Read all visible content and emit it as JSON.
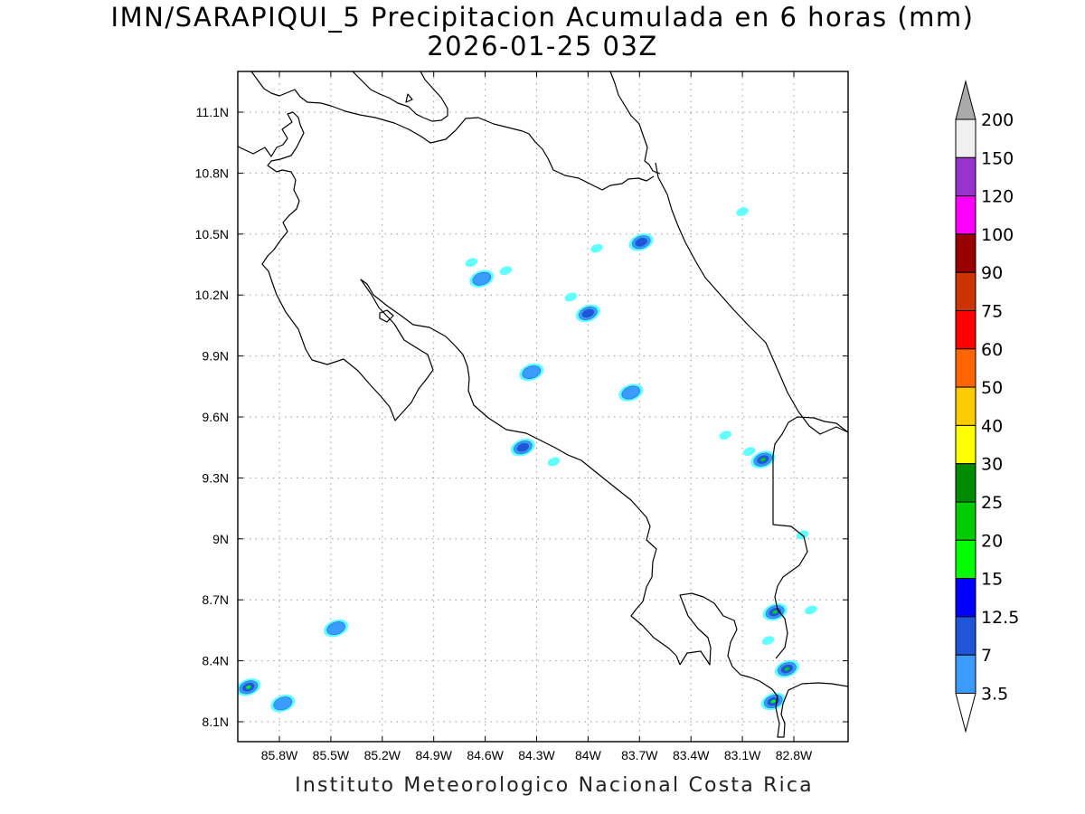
{
  "title": "IMN/SARAPIQUI_5 Precipitacion Acumulada en 6 horas (mm)",
  "subtitle": "2026-01-25 03Z",
  "footer": "Instituto Meteorologico Nacional Costa Rica",
  "map": {
    "lon_range": [
      -86.0,
      -83.0
    ],
    "lat_range": [
      8.0,
      11.3
    ],
    "lon_ticks": [
      "85.8W",
      "85.5W",
      "85.2W",
      "84.9W",
      "84.6W",
      "84.3W",
      "84W",
      "83.7W",
      "83.4W",
      "83.1W",
      "82.8W"
    ],
    "lat_ticks": [
      "8.1N",
      "8.4N",
      "8.7N",
      "9N",
      "9.3N",
      "9.6N",
      "9.9N",
      "10.2N",
      "10.5N",
      "10.8N",
      "11.1N"
    ],
    "grid": true,
    "coastline_color": "#000000"
  },
  "colorbar": {
    "levels": [
      "3.5",
      "7",
      "12.5",
      "15",
      "20",
      "25",
      "30",
      "40",
      "50",
      "60",
      "75",
      "90",
      "100",
      "120",
      "150",
      "200"
    ],
    "colors": [
      "#62ffff",
      "#3b9cff",
      "#1f55d8",
      "#0000ff",
      "#00ff00",
      "#00cc00",
      "#008c00",
      "#ffff00",
      "#ffcc00",
      "#ff6600",
      "#ff0000",
      "#cc3300",
      "#990000",
      "#ff00ff",
      "#9933cc",
      "#f0f0f0",
      "#aaaaaa"
    ]
  },
  "chart_data": {
    "type": "heatmap",
    "title": "IMN/SARAPIQUI_5 Precipitacion Acumulada en 6 horas (mm)",
    "subtitle": "2026-01-25 03Z",
    "units": "mm",
    "xlabel": "",
    "ylabel": "",
    "x_ticks": [
      "85.8W",
      "85.5W",
      "85.2W",
      "84.9W",
      "84.6W",
      "84.3W",
      "84W",
      "83.7W",
      "83.4W",
      "83.1W",
      "82.8W"
    ],
    "y_ticks": [
      "8.1N",
      "8.4N",
      "8.7N",
      "9N",
      "9.3N",
      "9.6N",
      "9.9N",
      "10.2N",
      "10.5N",
      "10.8N",
      "11.1N"
    ],
    "legend_placement": "right",
    "rain_cells": [
      {
        "lon": -83.69,
        "lat": 10.46,
        "max_level": "12.5"
      },
      {
        "lon": -84.62,
        "lat": 10.28,
        "max_level": "7"
      },
      {
        "lon": -84.0,
        "lat": 10.11,
        "max_level": "12.5"
      },
      {
        "lon": -84.33,
        "lat": 9.82,
        "max_level": "7"
      },
      {
        "lon": -83.75,
        "lat": 9.72,
        "max_level": "7"
      },
      {
        "lon": -84.38,
        "lat": 9.45,
        "max_level": "12.5"
      },
      {
        "lon": -82.98,
        "lat": 9.39,
        "max_level": "25"
      },
      {
        "lon": -82.91,
        "lat": 8.64,
        "max_level": "25"
      },
      {
        "lon": -82.84,
        "lat": 8.36,
        "max_level": "25"
      },
      {
        "lon": -82.92,
        "lat": 8.2,
        "max_level": "20"
      },
      {
        "lon": -85.98,
        "lat": 8.27,
        "max_level": "20"
      },
      {
        "lon": -85.78,
        "lat": 8.19,
        "max_level": "7"
      },
      {
        "lon": -85.47,
        "lat": 8.56,
        "max_level": "7"
      },
      {
        "lon": -84.48,
        "lat": 10.32,
        "max_level": "3.5"
      },
      {
        "lon": -84.1,
        "lat": 10.19,
        "max_level": "3.5"
      },
      {
        "lon": -83.95,
        "lat": 10.43,
        "max_level": "3.5"
      },
      {
        "lon": -84.68,
        "lat": 10.36,
        "max_level": "3.5"
      },
      {
        "lon": -82.75,
        "lat": 9.02,
        "max_level": "3.5"
      },
      {
        "lon": -82.7,
        "lat": 8.65,
        "max_level": "3.5"
      },
      {
        "lon": -82.95,
        "lat": 8.5,
        "max_level": "3.5"
      },
      {
        "lon": -84.2,
        "lat": 9.38,
        "max_level": "3.5"
      },
      {
        "lon": -83.06,
        "lat": 9.43,
        "max_level": "3.5"
      },
      {
        "lon": -83.2,
        "lat": 9.51,
        "max_level": "3.5"
      },
      {
        "lon": -83.1,
        "lat": 10.61,
        "max_level": "3.5"
      }
    ]
  }
}
